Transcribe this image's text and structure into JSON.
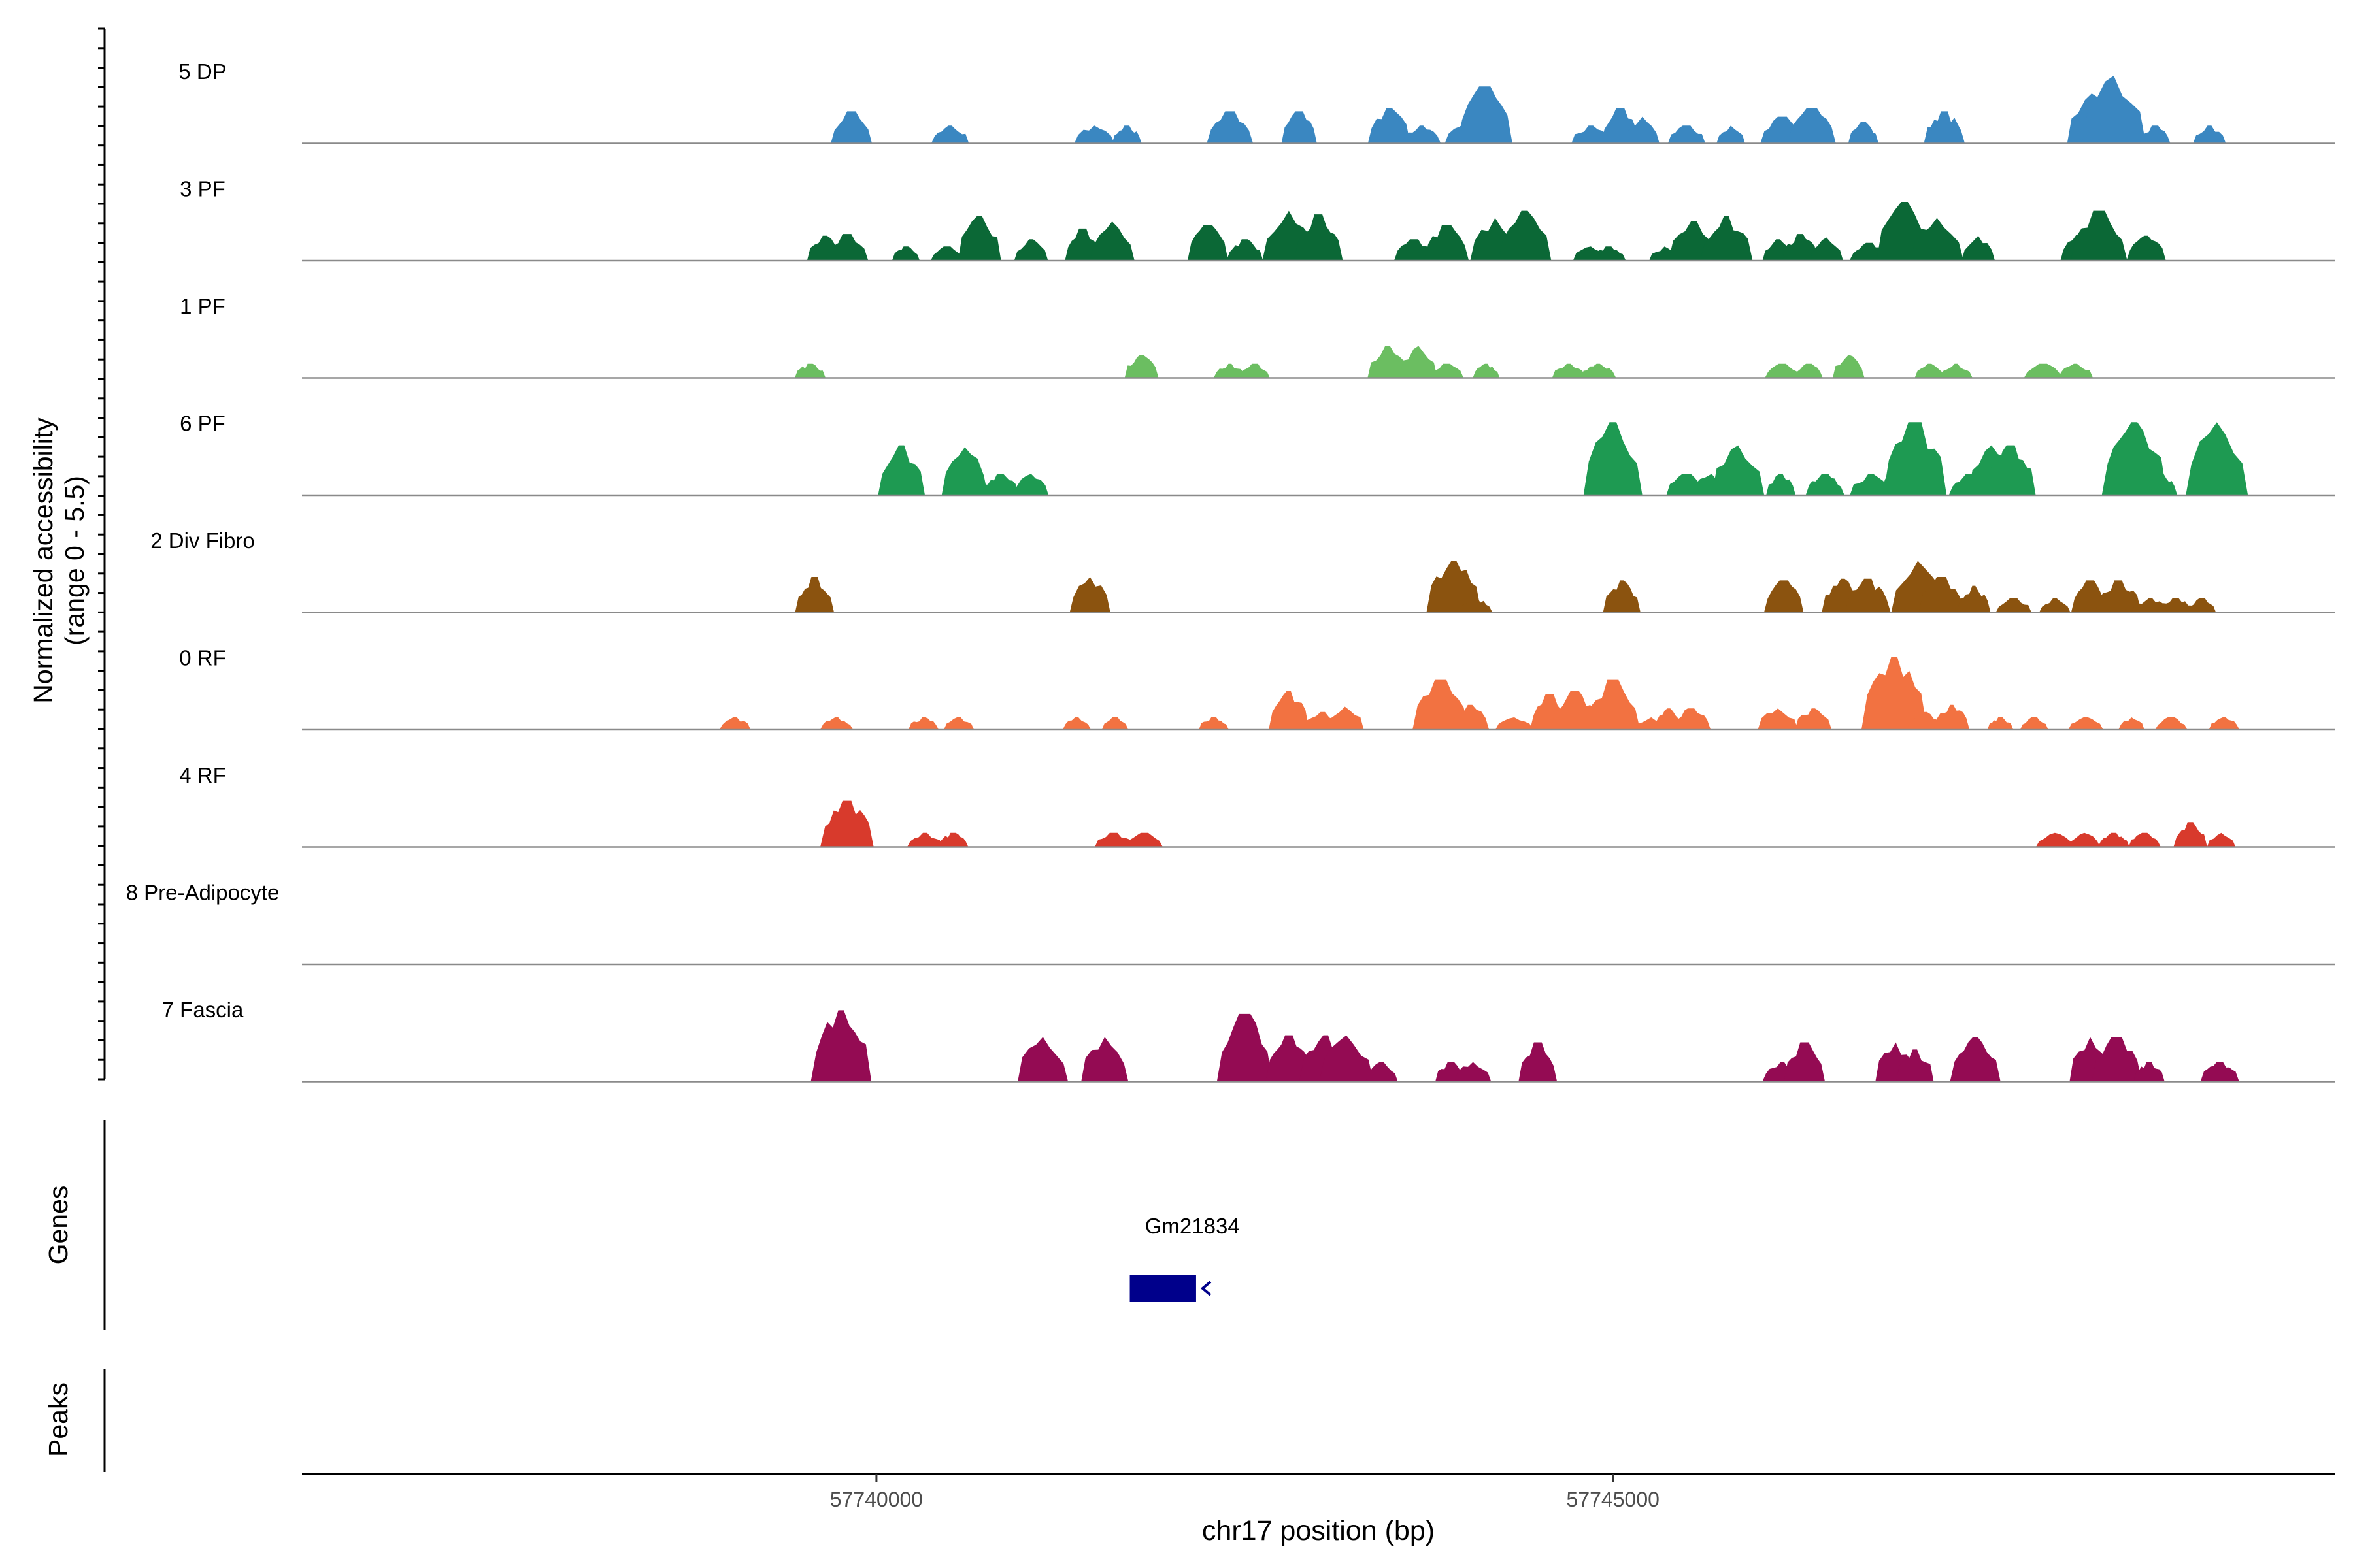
{
  "chart_data": {
    "type": "area",
    "title": "",
    "ylabel_line1": "Normalized accessibility",
    "ylabel_line2": "(range 0 - 5.5)",
    "ylim": [
      0,
      5.5
    ],
    "xlabel": "chr17 position (bp)",
    "xlim": [
      57736100,
      57749900
    ],
    "xticks": [
      {
        "value": 57740000,
        "label": "57740000"
      },
      {
        "value": 57745000,
        "label": "57745000"
      }
    ],
    "tracks": [
      {
        "name": "5 DP",
        "color": "#3A87C1",
        "peaks": [
          [
            57739830,
            1.8
          ],
          [
            57740500,
            1.0
          ],
          [
            57741480,
            1.0
          ],
          [
            57741700,
            1.0
          ],
          [
            57742400,
            1.8
          ],
          [
            57742870,
            1.8
          ],
          [
            57743480,
            2.0
          ],
          [
            57743700,
            1.0
          ],
          [
            57744000,
            1.2
          ],
          [
            57744130,
            3.2
          ],
          [
            57744850,
            1.0
          ],
          [
            57745050,
            2.0
          ],
          [
            57745200,
            1.5
          ],
          [
            57745500,
            1.0
          ],
          [
            57745800,
            1.0
          ],
          [
            57746150,
            1.5
          ],
          [
            57746350,
            2.0
          ],
          [
            57746700,
            1.2
          ],
          [
            57747250,
            1.8
          ],
          [
            57748250,
            2.8
          ],
          [
            57748400,
            3.8
          ],
          [
            57748680,
            1.0
          ],
          [
            57749050,
            1.0
          ]
        ]
      },
      {
        "name": "3 PF",
        "color": "#0B6836",
        "peaks": [
          [
            57739650,
            1.4
          ],
          [
            57739800,
            1.5
          ],
          [
            57740200,
            0.8
          ],
          [
            57740480,
            0.8
          ],
          [
            57740700,
            2.5
          ],
          [
            57741050,
            1.2
          ],
          [
            57741400,
            1.8
          ],
          [
            57741600,
            2.2
          ],
          [
            57742250,
            2.0
          ],
          [
            57742500,
            1.2
          ],
          [
            57742800,
            2.8
          ],
          [
            57743000,
            2.6
          ],
          [
            57743650,
            1.2
          ],
          [
            57743870,
            2.0
          ],
          [
            57744200,
            2.4
          ],
          [
            57744400,
            2.8
          ],
          [
            57744850,
            0.8
          ],
          [
            57744970,
            0.8
          ],
          [
            57745350,
            0.8
          ],
          [
            57745550,
            2.2
          ],
          [
            57745770,
            2.5
          ],
          [
            57746120,
            1.2
          ],
          [
            57746270,
            1.5
          ],
          [
            57746450,
            1.3
          ],
          [
            57746740,
            1.0
          ],
          [
            57746980,
            3.3
          ],
          [
            57747200,
            2.4
          ],
          [
            57747480,
            1.4
          ],
          [
            57748150,
            1.5
          ],
          [
            57748300,
            2.8
          ],
          [
            57748620,
            1.4
          ]
        ]
      },
      {
        "name": "1 PF",
        "color": "#6BBE61",
        "peaks": [
          [
            57739550,
            0.8
          ],
          [
            57741800,
            1.3
          ],
          [
            57742400,
            0.8
          ],
          [
            57742570,
            0.8
          ],
          [
            57743470,
            1.8
          ],
          [
            57743680,
            1.8
          ],
          [
            57743870,
            0.8
          ],
          [
            57744140,
            0.8
          ],
          [
            57744700,
            0.8
          ],
          [
            57744900,
            0.8
          ],
          [
            57746150,
            0.8
          ],
          [
            57746330,
            0.8
          ],
          [
            57746600,
            1.3
          ],
          [
            57747150,
            0.8
          ],
          [
            57747330,
            0.8
          ],
          [
            57747920,
            0.8
          ],
          [
            57748140,
            0.8
          ]
        ]
      },
      {
        "name": "6 PF",
        "color": "#1E9A52",
        "peaks": [
          [
            57740170,
            2.8
          ],
          [
            57740600,
            2.7
          ],
          [
            57740840,
            1.2
          ],
          [
            57741050,
            1.2
          ],
          [
            57745000,
            4.1
          ],
          [
            57745500,
            1.2
          ],
          [
            57745670,
            1.2
          ],
          [
            57745850,
            2.8
          ],
          [
            57746140,
            1.2
          ],
          [
            57746440,
            1.2
          ],
          [
            57746750,
            1.2
          ],
          [
            57746980,
            2.0
          ],
          [
            57747050,
            4.1
          ],
          [
            57747420,
            1.2
          ],
          [
            57747570,
            2.8
          ],
          [
            57747700,
            2.8
          ],
          [
            57748540,
            4.1
          ],
          [
            57748720,
            1.2
          ],
          [
            57749100,
            4.1
          ]
        ]
      },
      {
        "name": "2 Div Fibro",
        "color": "#8B530F",
        "peaks": [
          [
            57739580,
            2.0
          ],
          [
            57741450,
            2.0
          ],
          [
            57743920,
            2.9
          ],
          [
            57744070,
            0.8
          ],
          [
            57745060,
            1.8
          ],
          [
            57746160,
            1.8
          ],
          [
            57746560,
            1.9
          ],
          [
            57746730,
            1.9
          ],
          [
            57747070,
            2.9
          ],
          [
            57747230,
            2.0
          ],
          [
            57747450,
            1.5
          ],
          [
            57747720,
            0.8
          ],
          [
            57748000,
            0.8
          ],
          [
            57748240,
            1.8
          ],
          [
            57748430,
            1.8
          ],
          [
            57748650,
            0.8
          ],
          [
            57748820,
            0.8
          ],
          [
            57749000,
            0.8
          ]
        ]
      },
      {
        "name": "0 RF",
        "color": "#F27241",
        "peaks": [
          [
            57739040,
            0.7
          ],
          [
            57739730,
            0.7
          ],
          [
            57740320,
            0.7
          ],
          [
            57740560,
            0.7
          ],
          [
            57741360,
            0.7
          ],
          [
            57741620,
            0.7
          ],
          [
            57742290,
            0.7
          ],
          [
            57742800,
            2.2
          ],
          [
            57743030,
            1.0
          ],
          [
            57743180,
            1.3
          ],
          [
            57743830,
            2.8
          ],
          [
            57744030,
            1.4
          ],
          [
            57744330,
            0.7
          ],
          [
            57744570,
            2.0
          ],
          [
            57744740,
            2.2
          ],
          [
            57744890,
            0.7
          ],
          [
            57745000,
            2.8
          ],
          [
            57745260,
            0.7
          ],
          [
            57745380,
            1.2
          ],
          [
            57745530,
            1.2
          ],
          [
            57746120,
            1.2
          ],
          [
            57746360,
            1.2
          ],
          [
            57746910,
            4.1
          ],
          [
            57747120,
            1.0
          ],
          [
            57747300,
            1.4
          ],
          [
            57747630,
            0.7
          ],
          [
            57747860,
            0.7
          ],
          [
            57748210,
            0.7
          ],
          [
            57748520,
            0.7
          ],
          [
            57748790,
            0.7
          ],
          [
            57749150,
            0.7
          ]
        ]
      },
      {
        "name": "4 RF",
        "color": "#D83A2C",
        "peaks": [
          [
            57739800,
            2.6
          ],
          [
            57740330,
            0.8
          ],
          [
            57740520,
            0.8
          ],
          [
            57741610,
            0.8
          ],
          [
            57741820,
            0.8
          ],
          [
            57748000,
            0.8
          ],
          [
            57748200,
            0.8
          ],
          [
            57748400,
            0.8
          ],
          [
            57748610,
            0.8
          ],
          [
            57748920,
            1.4
          ],
          [
            57749130,
            0.8
          ]
        ]
      },
      {
        "name": "8 Pre-Adipocyte",
        "color": "#888888",
        "peaks": []
      },
      {
        "name": "7 Fascia",
        "color": "#940B53",
        "peaks": [
          [
            57739760,
            4.0
          ],
          [
            57741130,
            2.5
          ],
          [
            57741550,
            2.5
          ],
          [
            57742500,
            3.8
          ],
          [
            57742800,
            2.6
          ],
          [
            57743050,
            2.6
          ],
          [
            57743190,
            2.6
          ],
          [
            57743430,
            1.1
          ],
          [
            57743900,
            1.1
          ],
          [
            57744050,
            1.1
          ],
          [
            57744490,
            2.2
          ],
          [
            57746150,
            1.1
          ],
          [
            57746300,
            2.2
          ],
          [
            57746920,
            2.2
          ],
          [
            57747050,
            1.8
          ],
          [
            57747460,
            2.5
          ],
          [
            57748240,
            2.5
          ],
          [
            57748420,
            2.5
          ],
          [
            57748640,
            1.1
          ],
          [
            57749120,
            1.1
          ]
        ]
      }
    ],
    "genes": {
      "label": "Genes",
      "items": [
        {
          "name": "Gm21834",
          "start": 57741720,
          "end": 57742170,
          "strand": "-",
          "color": "#00008B"
        }
      ]
    },
    "peaks_panel_label": "Peaks"
  }
}
